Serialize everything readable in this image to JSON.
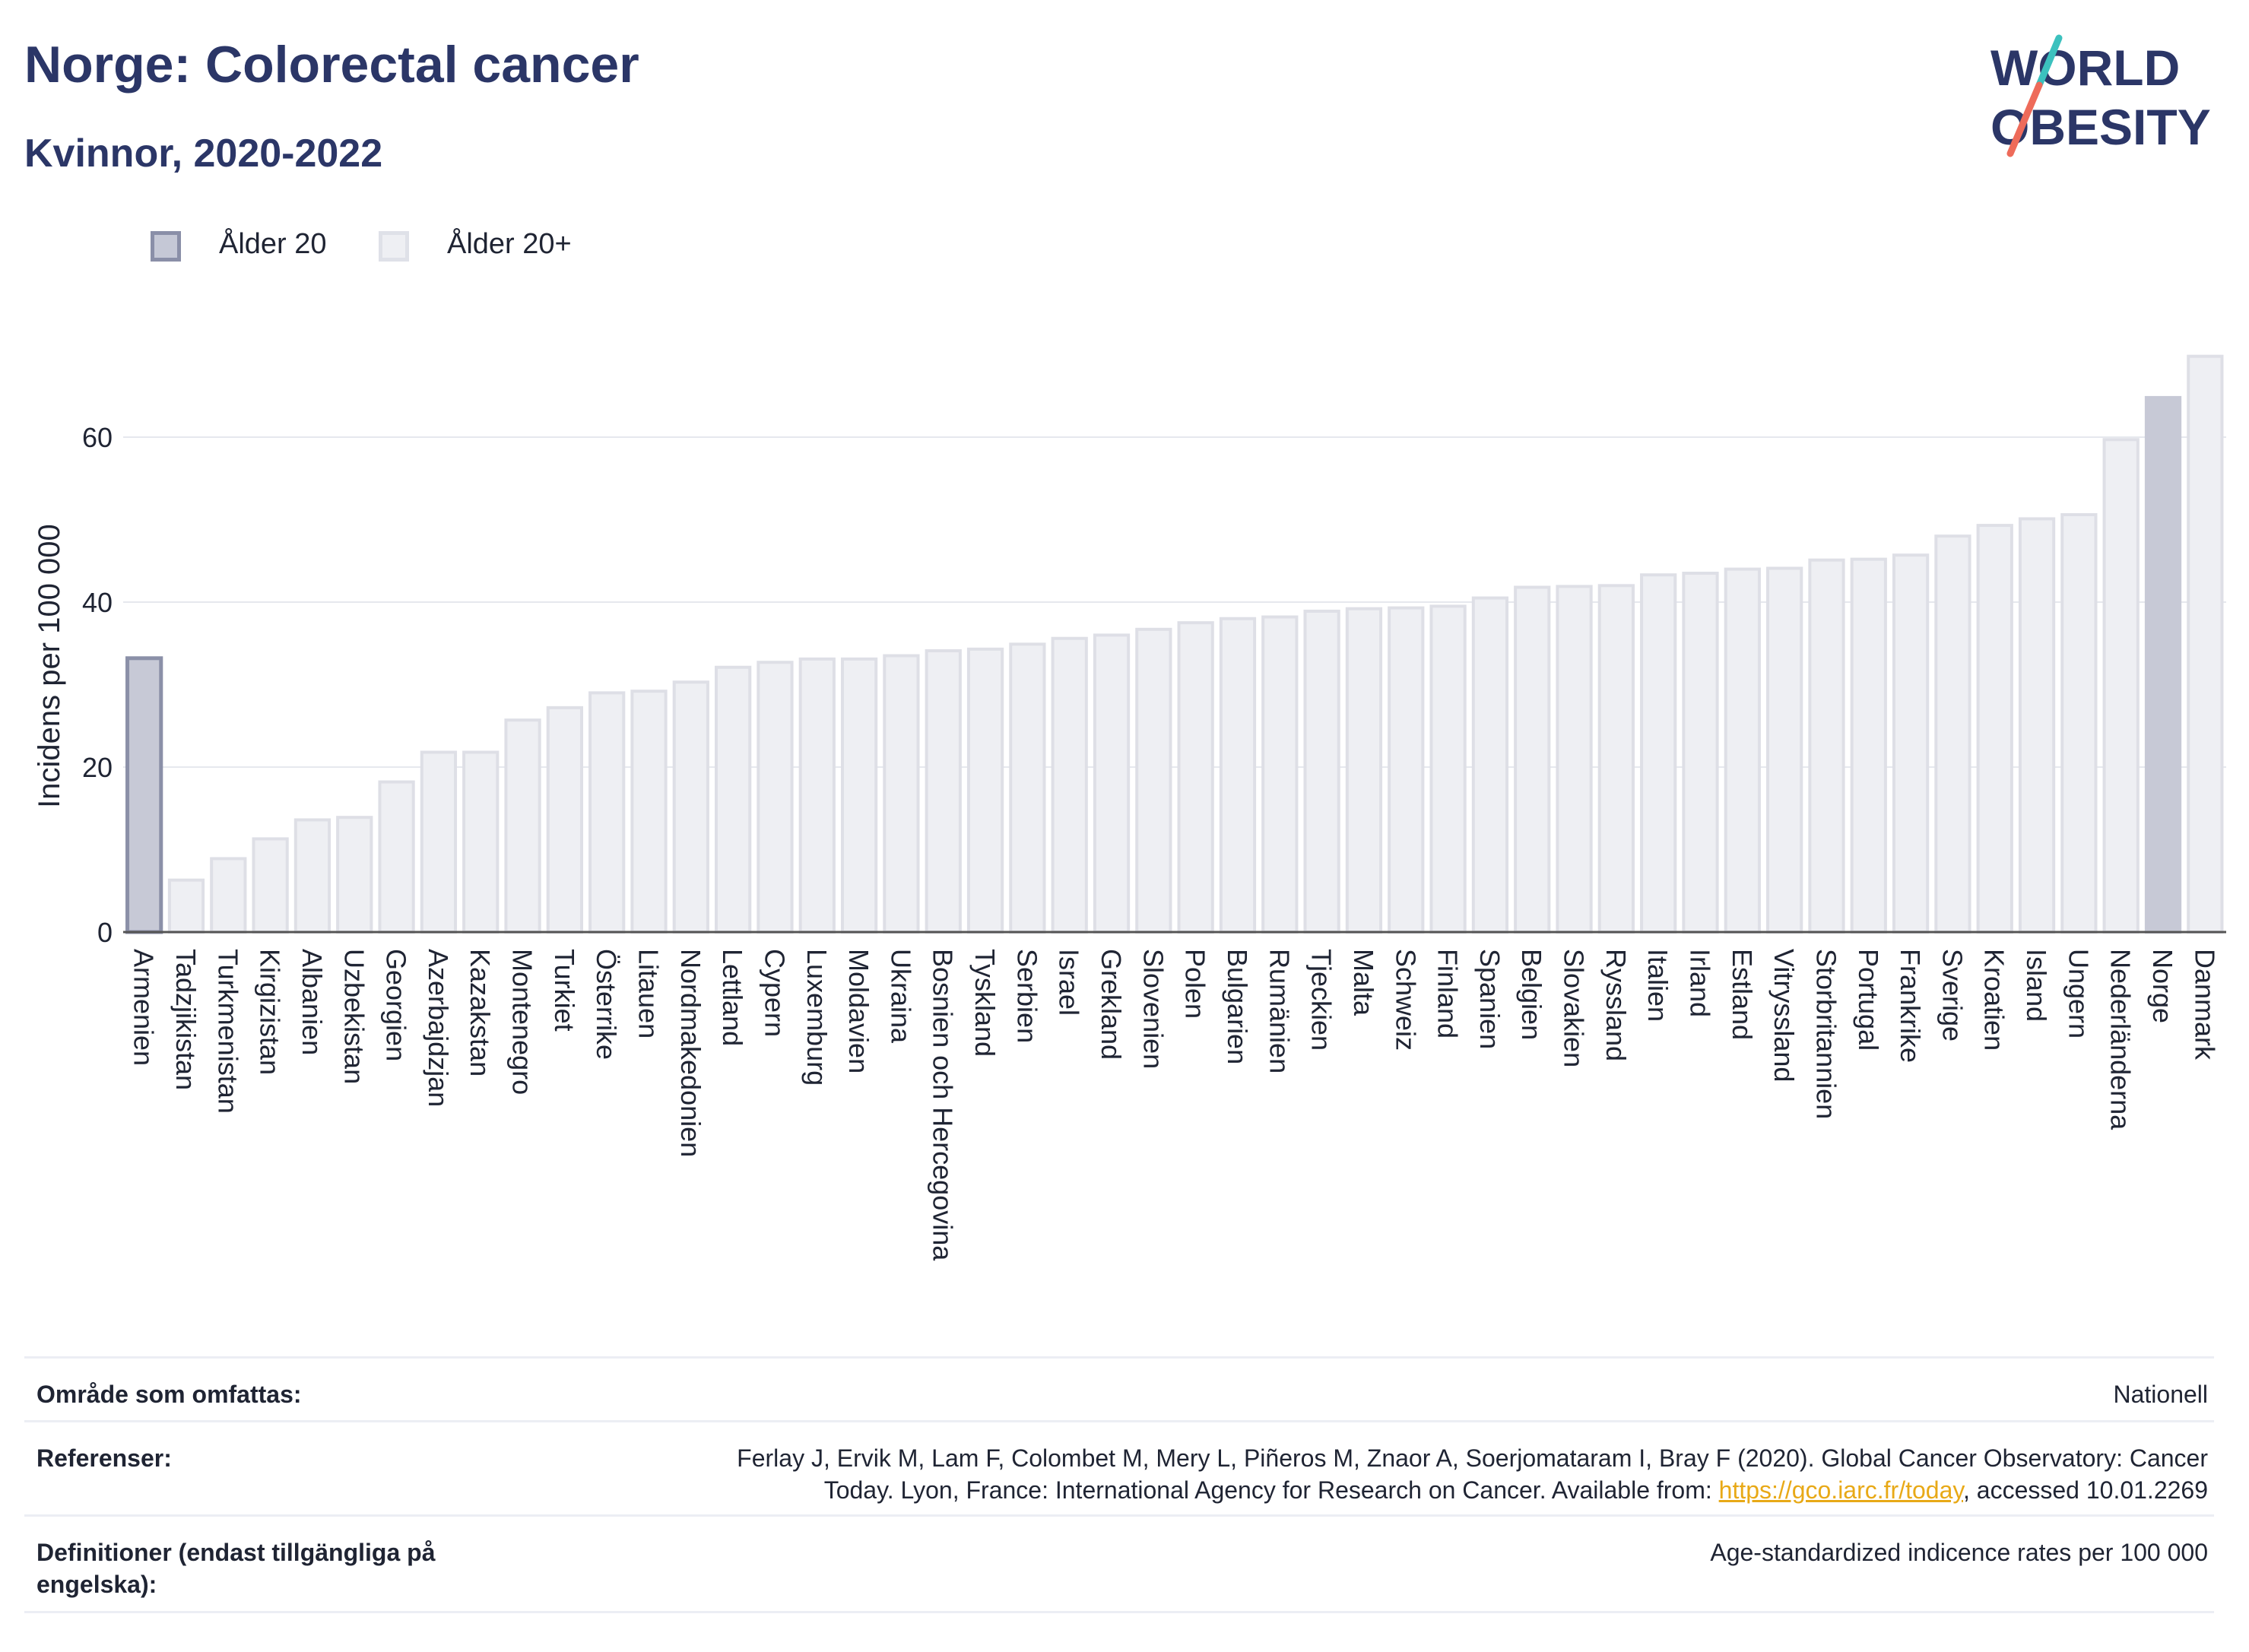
{
  "header": {
    "title": "Norge: Colorectal cancer",
    "subtitle": "Kvinnor, 2020-2022"
  },
  "logo": {
    "line1": "WORLD",
    "line2": "OBESITY"
  },
  "legend": {
    "items": [
      {
        "label": "Ålder 20",
        "color": "#c5c8d6",
        "border": "#8a8fa8"
      },
      {
        "label": "Ålder 20+",
        "color": "#eeeff3",
        "border": "#dfe1e8"
      }
    ]
  },
  "colors": {
    "highlight": "#c7c9d6",
    "highlight_border": "#8b90a8",
    "default": "#eeeff3",
    "default_border": "#dedfe6",
    "grid": "#e6e8ee",
    "axis": "#555555"
  },
  "chart_data": {
    "type": "bar",
    "ylabel": "Incidens per 100 000",
    "ylim": [
      0,
      72
    ],
    "yticks": [
      0,
      20,
      40,
      60
    ],
    "grid": true,
    "legend_position": "top-left",
    "series": [
      {
        "name": "Ålder 20",
        "highlight_categories": [
          "Armenien"
        ]
      },
      {
        "name": "Ålder 20+"
      }
    ],
    "categories": [
      "Armenien",
      "Tadzjikistan",
      "Turkmenistan",
      "Kirgizistan",
      "Albanien",
      "Uzbekistan",
      "Georgien",
      "Azerbajdzjan",
      "Kazakstan",
      "Montenegro",
      "Turkiet",
      "Österrike",
      "Litauen",
      "Nordmakedonien",
      "Lettland",
      "Cypern",
      "Luxemburg",
      "Moldavien",
      "Ukraina",
      "Bosnien och Hercegovina",
      "Tyskland",
      "Serbien",
      "Israel",
      "Grekland",
      "Slovenien",
      "Polen",
      "Bulgarien",
      "Rumänien",
      "Tjeckien",
      "Malta",
      "Schweiz",
      "Finland",
      "Spanien",
      "Belgien",
      "Slovakien",
      "Ryssland",
      "Italien",
      "Irland",
      "Estland",
      "Vitryssland",
      "Storbritannien",
      "Portugal",
      "Frankrike",
      "Sverige",
      "Kroatien",
      "Island",
      "Ungern",
      "Nederländerna",
      "Norge",
      "Danmark"
    ],
    "values": [
      33.2,
      6.3,
      8.9,
      11.3,
      13.6,
      13.9,
      18.2,
      21.8,
      21.8,
      25.7,
      27.2,
      29.0,
      29.2,
      30.3,
      32.1,
      32.7,
      33.1,
      33.1,
      33.5,
      34.1,
      34.3,
      34.9,
      35.6,
      36.0,
      36.7,
      37.5,
      38.0,
      38.2,
      38.9,
      39.2,
      39.3,
      39.5,
      40.5,
      41.8,
      41.9,
      42.0,
      43.3,
      43.5,
      44.0,
      44.1,
      45.1,
      45.2,
      45.7,
      48.0,
      49.3,
      50.1,
      50.6,
      59.7,
      64.8,
      69.8
    ],
    "highlight": [
      "Armenien",
      "Norge"
    ]
  },
  "info": {
    "rows": [
      {
        "key": "Område som omfattas:",
        "value": "Nationell"
      },
      {
        "key": "Referenser:",
        "value_line1": "Ferlay J, Ervik M, Lam F, Colombet M, Mery L, Piñeros M, Znaor A, Soerjomataram I, Bray F (2020). Global Cancer Observatory: Cancer",
        "value_line2_pre": "Today. Lyon, France: International Agency for Research on Cancer. Available from: ",
        "link": "https://gco.iarc.fr/today",
        "value_line2_post": ", accessed 10.01.2269"
      },
      {
        "key": "Definitioner (endast tillgängliga på engelska):",
        "value": "Age-standardized indicence rates per 100 000"
      }
    ]
  }
}
